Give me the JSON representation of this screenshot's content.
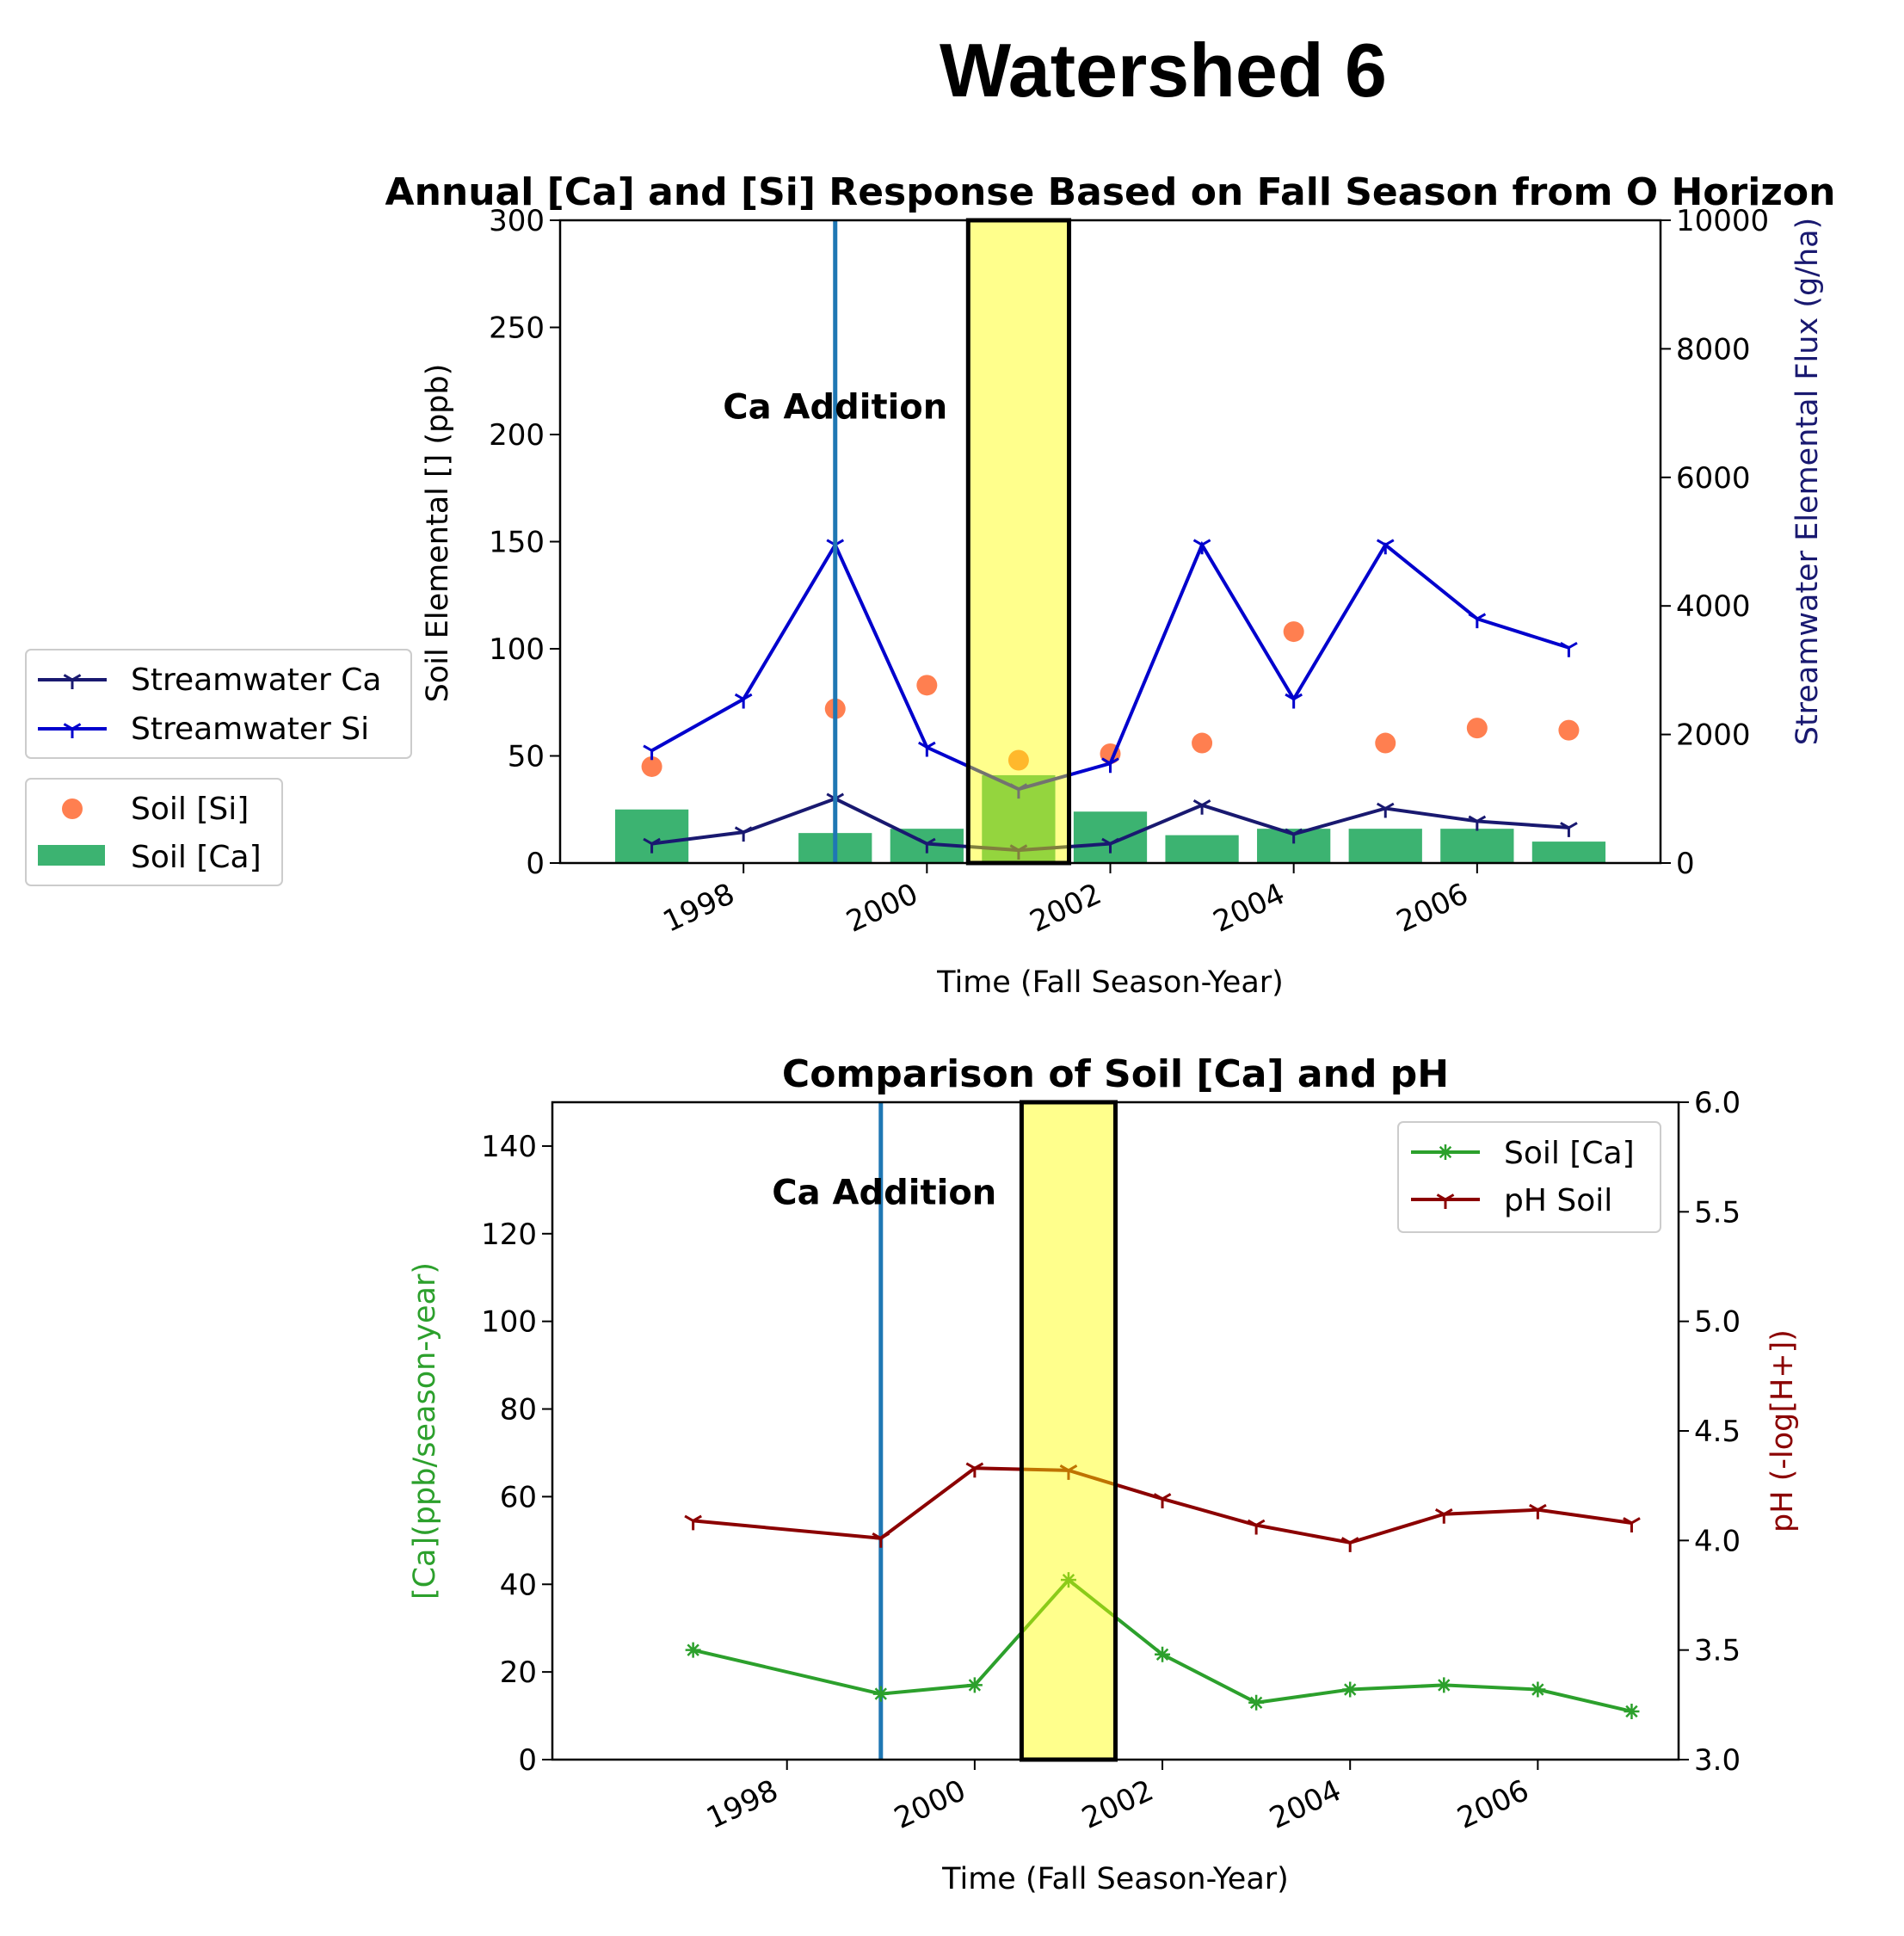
{
  "figure": {
    "title": "Watershed 6"
  },
  "colors": {
    "streamwater_ca": "#191970",
    "streamwater_si": "#0000cd",
    "soil_si": "#ff7f50",
    "soil_ca_bar": "#3cb371",
    "soil_ca_line": "#2ca02c",
    "ph_soil": "#8b0000",
    "ca_addition_line": "#1f77b4",
    "highlight_fill": "#ffff00",
    "highlight_edge": "#000000",
    "right_label_top": "#191970",
    "left_label_bottom": "#2ca02c",
    "right_label_bottom": "#8b0000"
  },
  "chart_data": [
    {
      "type": "bar",
      "title": "Annual [Ca] and [Si] Response Based on Fall Season from O Horizon",
      "xlabel": "Time (Fall Season-Year)",
      "ylabel": "Soil Elemental [] (ppb)",
      "y2label": "Streamwater Elemental Flux (g/ha)",
      "xlim": [
        1996.0,
        2008.0
      ],
      "ylim": [
        0,
        300
      ],
      "y2lim": [
        0,
        10000
      ],
      "xticks": [
        1998,
        2000,
        2002,
        2004,
        2006
      ],
      "yticks": [
        0,
        50,
        100,
        150,
        200,
        250,
        300
      ],
      "y2ticks": [
        0,
        2000,
        4000,
        6000,
        8000,
        10000
      ],
      "annotation": {
        "text": "Ca Addition",
        "x": 1999,
        "y": 205
      },
      "vline_x": 1999,
      "highlight_x": [
        2000.45,
        2001.55
      ],
      "legend_lines": [
        "Streamwater Ca",
        "Streamwater Si"
      ],
      "legend_soil": [
        "Soil [Si]",
        "Soil [Ca]"
      ],
      "series": [
        {
          "name": "Soil [Ca]",
          "kind": "bar",
          "axis": "left",
          "x": [
            1997,
            1999,
            2000,
            2001,
            2002,
            2003,
            2004,
            2005,
            2006,
            2007
          ],
          "values": [
            25,
            14,
            16,
            41,
            24,
            13,
            16,
            16,
            16,
            10
          ]
        },
        {
          "name": "Soil [Si]",
          "kind": "scatter",
          "axis": "left",
          "x": [
            1997,
            1999,
            2000,
            2001,
            2002,
            2003,
            2004,
            2005,
            2006,
            2007
          ],
          "values": [
            45,
            72,
            83,
            48,
            51,
            56,
            108,
            56,
            63,
            62
          ]
        },
        {
          "name": "Streamwater Ca",
          "kind": "line",
          "axis": "right",
          "x": [
            1997,
            1998,
            1999,
            2000,
            2001,
            2002,
            2003,
            2004,
            2005,
            2006,
            2007
          ],
          "values": [
            300,
            480,
            1000,
            300,
            200,
            300,
            900,
            450,
            850,
            650,
            550
          ]
        },
        {
          "name": "Streamwater Si",
          "kind": "line",
          "axis": "right",
          "x": [
            1997,
            1998,
            1999,
            2000,
            2001,
            2002,
            2003,
            2004,
            2005,
            2006,
            2007
          ],
          "values": [
            1750,
            2550,
            4950,
            1800,
            1150,
            1550,
            4950,
            2550,
            4950,
            3800,
            3350
          ]
        }
      ]
    },
    {
      "type": "line",
      "title": "Comparison of Soil [Ca] and pH",
      "xlabel": "Time (Fall Season-Year)",
      "ylabel": "[Ca](ppb/season-year)",
      "y2label": "pH (-log[H+])",
      "xlim": [
        1995.5,
        2007.5
      ],
      "ylim": [
        0,
        150
      ],
      "y2lim": [
        3.0,
        6.0
      ],
      "xticks": [
        1998,
        2000,
        2002,
        2004,
        2006
      ],
      "yticks": [
        0,
        20,
        40,
        60,
        80,
        100,
        120,
        140
      ],
      "y2ticks": [
        3.0,
        3.5,
        4.0,
        4.5,
        5.0,
        5.5,
        6.0
      ],
      "annotation": {
        "text": "Ca Addition",
        "x": 1999,
        "y": 122
      },
      "vline_x": 1999,
      "highlight_x": [
        2000.5,
        2001.5
      ],
      "legend": [
        "Soil [Ca]",
        "pH Soil"
      ],
      "series": [
        {
          "name": "Soil [Ca]",
          "axis": "left",
          "x": [
            1997,
            1999,
            2000,
            2001,
            2002,
            2003,
            2004,
            2005,
            2006,
            2007
          ],
          "values": [
            25,
            15,
            17,
            41,
            24,
            13,
            16,
            17,
            16,
            11
          ]
        },
        {
          "name": "pH Soil",
          "axis": "right",
          "x": [
            1997,
            1999,
            2000,
            2001,
            2002,
            2003,
            2004,
            2005,
            2006,
            2007
          ],
          "values": [
            4.09,
            4.01,
            4.33,
            4.32,
            4.19,
            4.07,
            3.99,
            4.12,
            4.14,
            4.08
          ]
        }
      ]
    }
  ]
}
